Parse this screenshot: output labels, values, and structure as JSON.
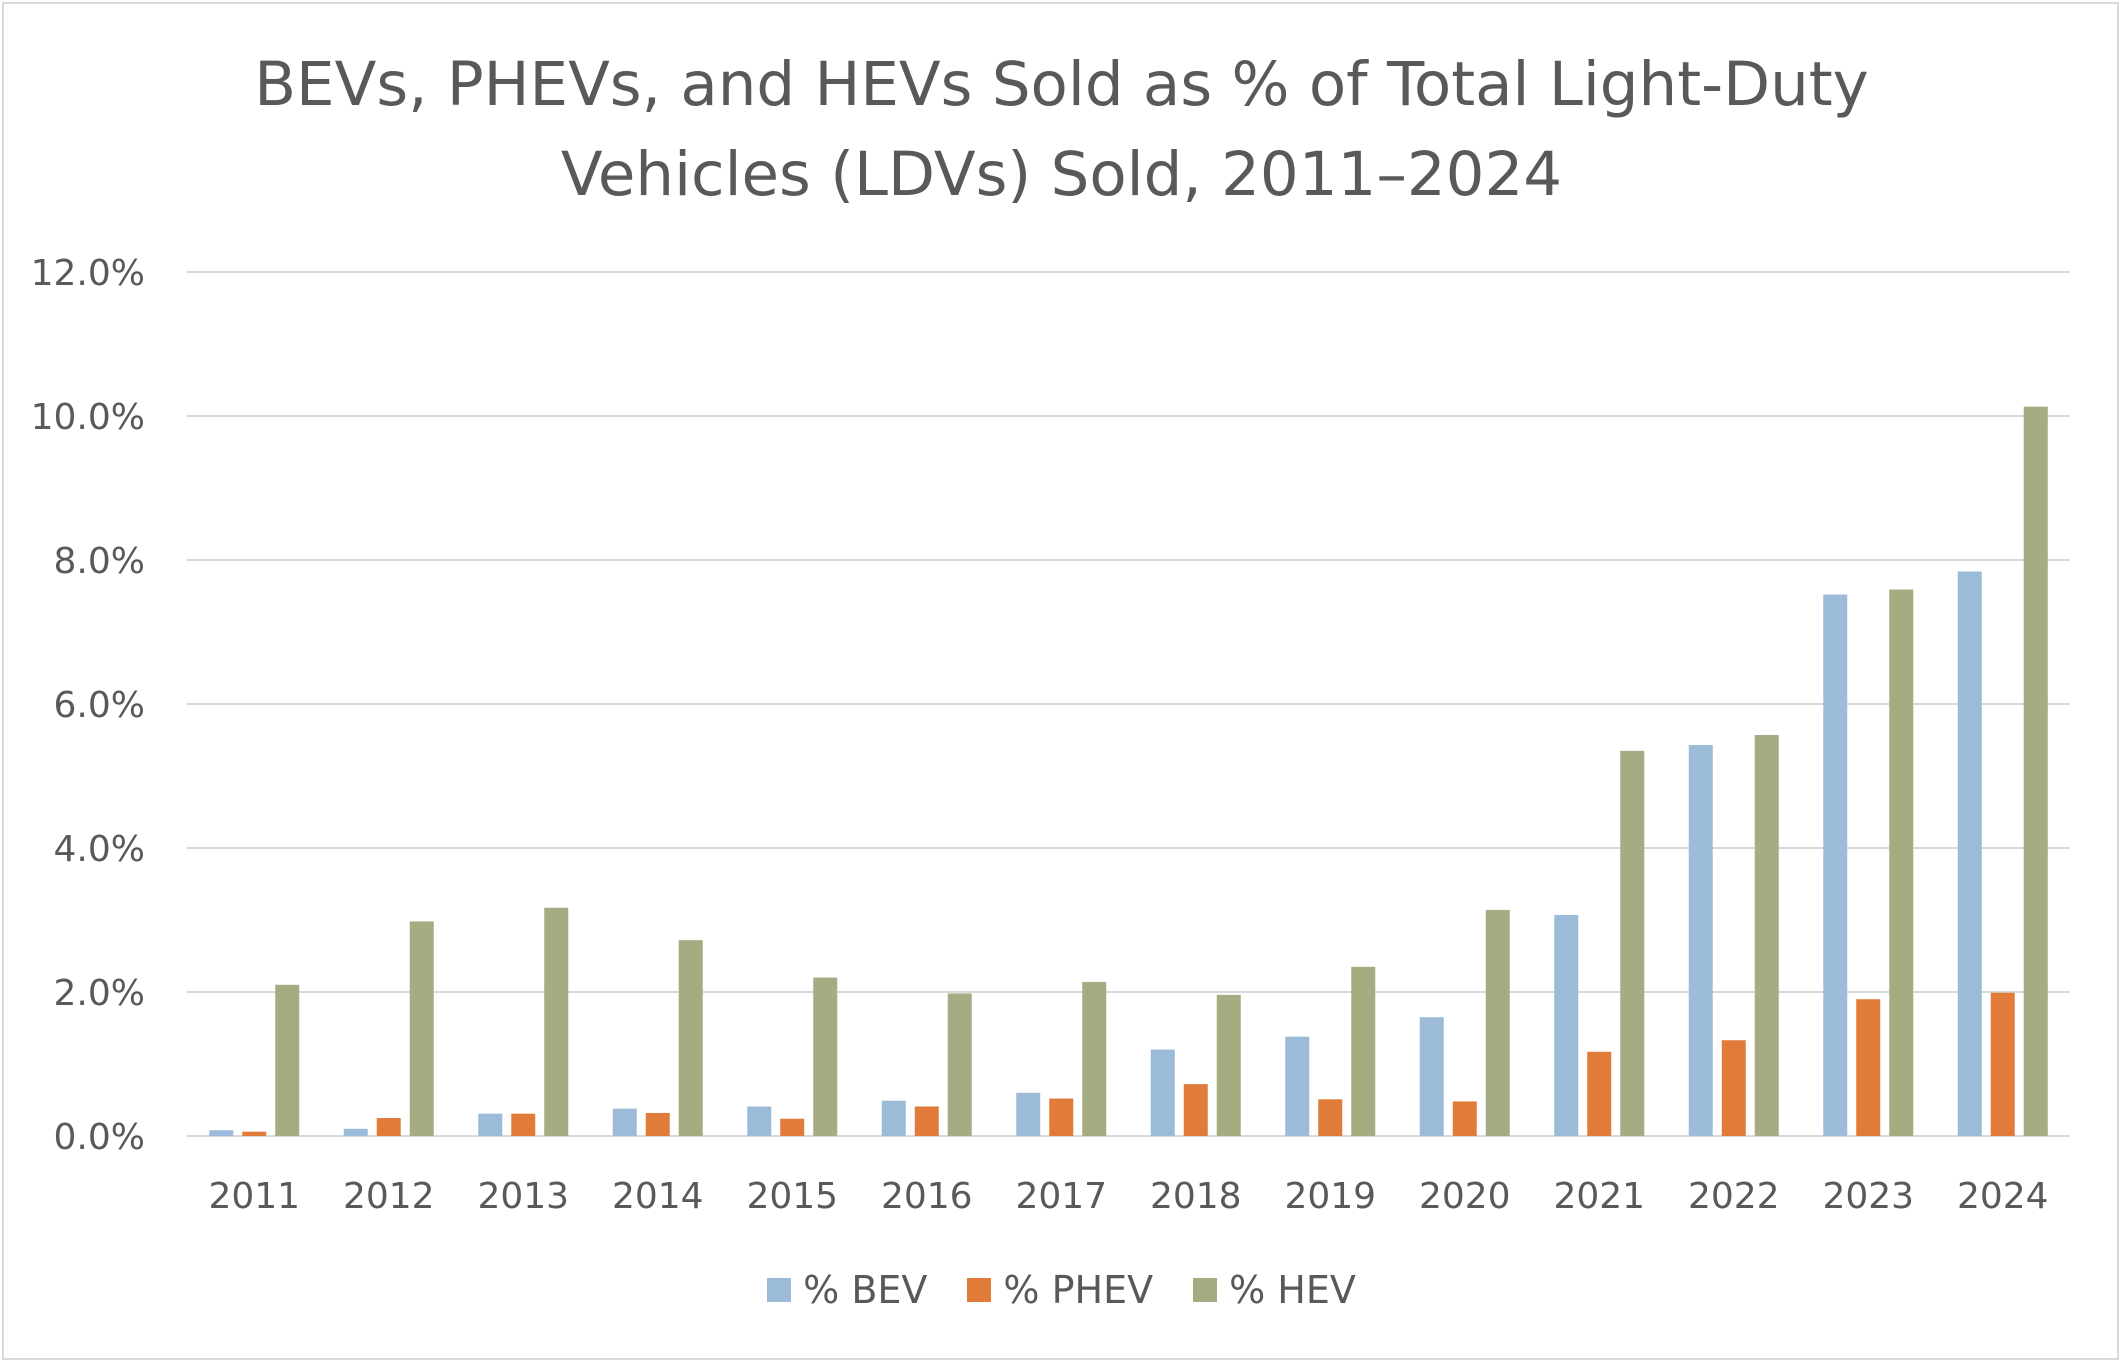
{
  "title_lines": [
    "BEVs, PHEVs, and HEVs Sold as % of Total Light-Duty",
    "Vehicles (LDVs) Sold, 2011–2024"
  ],
  "chart_data": {
    "type": "bar",
    "title": "BEVs, PHEVs, and HEVs Sold as % of Total Light-Duty Vehicles (LDVs) Sold, 2011–2024",
    "xlabel": "",
    "ylabel": "",
    "categories": [
      "2011",
      "2012",
      "2013",
      "2014",
      "2015",
      "2016",
      "2017",
      "2018",
      "2019",
      "2020",
      "2021",
      "2022",
      "2023",
      "2024"
    ],
    "series": [
      {
        "name": "% BEV",
        "color": "#9bbbd9",
        "values": [
          0.08,
          0.1,
          0.31,
          0.38,
          0.41,
          0.49,
          0.6,
          1.2,
          1.38,
          1.65,
          3.07,
          5.43,
          7.52,
          7.84
        ]
      },
      {
        "name": "% PHEV",
        "color": "#e07b39",
        "values": [
          0.06,
          0.25,
          0.31,
          0.32,
          0.24,
          0.41,
          0.52,
          0.72,
          0.51,
          0.48,
          1.17,
          1.33,
          1.9,
          1.99
        ]
      },
      {
        "name": "% HEV",
        "color": "#a5ac81",
        "values": [
          2.1,
          2.98,
          3.17,
          2.72,
          2.2,
          1.98,
          2.14,
          1.96,
          2.35,
          3.14,
          5.35,
          5.57,
          7.59,
          10.13
        ]
      }
    ],
    "ylim": [
      0,
      12
    ],
    "yticks": [
      "0.0%",
      "2.0%",
      "4.0%",
      "6.0%",
      "8.0%",
      "10.0%",
      "12.0%"
    ],
    "grid": true,
    "legend_position": "bottom"
  }
}
